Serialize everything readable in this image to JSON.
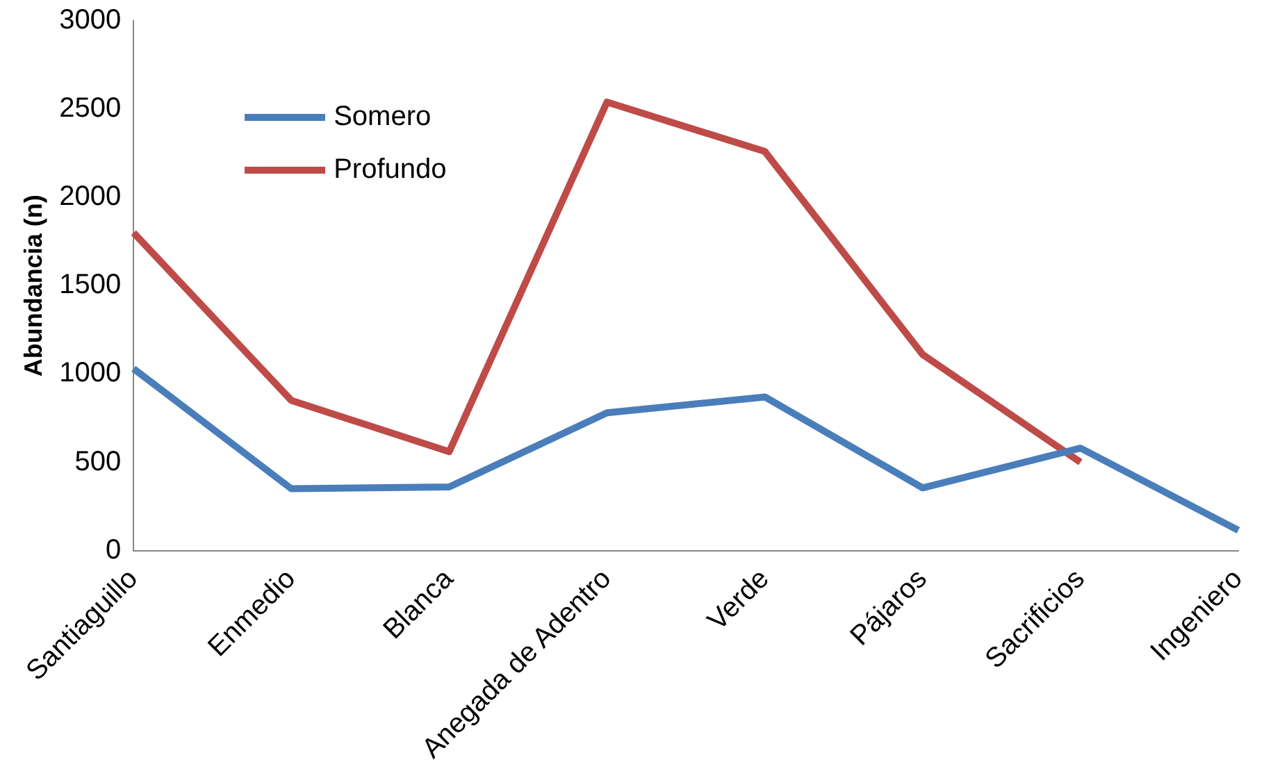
{
  "chart_data": {
    "type": "line",
    "ylabel": "Abundancia (n)",
    "categories": [
      "Santiaguillo",
      "Enmedio",
      "Blanca",
      "Anegada de Adentro",
      "Verde",
      "Pájaros",
      "Sacrificios",
      "Ingeniero"
    ],
    "series": [
      {
        "name": "Somero",
        "color": "#4a7ebb",
        "values": [
          1030,
          350,
          360,
          780,
          870,
          355,
          580,
          115
        ]
      },
      {
        "name": "Profundo",
        "color": "#be4b48",
        "values": [
          1800,
          850,
          560,
          2540,
          2260,
          1110,
          500,
          null
        ]
      }
    ],
    "ylim": [
      0,
      3000
    ],
    "yticks": [
      0,
      500,
      1000,
      1500,
      2000,
      2500,
      3000
    ],
    "grid": false,
    "legend": "top left",
    "marker": "none",
    "line_style": "solid"
  }
}
